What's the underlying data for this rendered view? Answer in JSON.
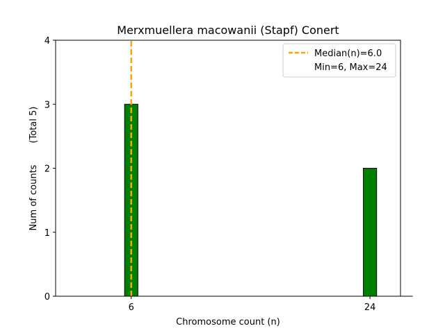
{
  "chart_data": {
    "type": "bar",
    "title": "Merxmuellera macowanii (Stapf) Conert",
    "xlabel": "Chromosome count (n)",
    "ylabel": "Num of counts",
    "ylabel_note": "(Total 5)",
    "categories": [
      "6",
      "24"
    ],
    "x": [
      6,
      24
    ],
    "values": [
      3,
      2
    ],
    "ylim": [
      0,
      4
    ],
    "yticks": [
      0,
      1,
      2,
      3,
      4
    ],
    "xticks": [
      6,
      24
    ],
    "median": 6.0,
    "grid": false,
    "legend_position": "top-right",
    "legend": [
      {
        "label": "Median(n)=6.0",
        "style": "dashed-line"
      },
      {
        "label": "Min=6, Max=24",
        "style": "none"
      }
    ],
    "colors": {
      "bar": "#008000",
      "bar_edge": "#000000",
      "median": "#ffa500"
    }
  }
}
